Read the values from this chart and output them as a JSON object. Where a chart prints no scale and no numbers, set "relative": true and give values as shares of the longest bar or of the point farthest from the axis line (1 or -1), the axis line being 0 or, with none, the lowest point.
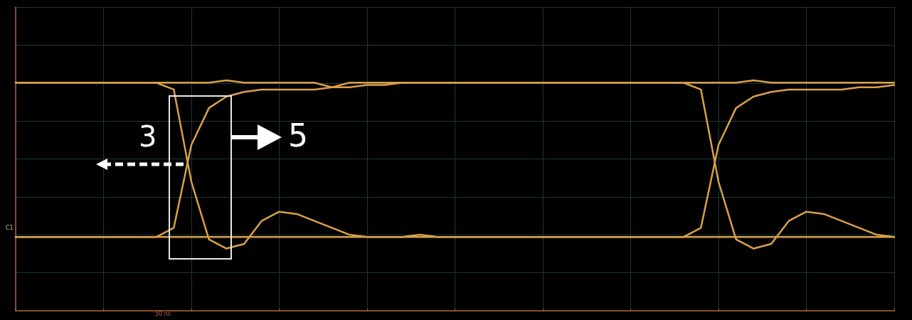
{
  "chart_data": {
    "type": "line",
    "relative": true,
    "marker": "none",
    "line_style": "solid",
    "grid": true,
    "categories": [
      null,
      null,
      null,
      null,
      null,
      null,
      null,
      null,
      null,
      null,
      null,
      null,
      null,
      null,
      null,
      null,
      null,
      null,
      null,
      null,
      null,
      null,
      null,
      null,
      null,
      null,
      null,
      null,
      null,
      null,
      null,
      null,
      null,
      null,
      null,
      null,
      null,
      null,
      null,
      null,
      null,
      null,
      null,
      null,
      null,
      null,
      null,
      null,
      null,
      null,
      null
    ],
    "annotations": [
      "3",
      "5",
      "C1",
      "50 ns"
    ],
    "series": [
      {
        "color": "#d9a04a",
        "values": [
          0.99,
          0.99,
          0.99,
          0.99,
          0.99,
          0.99,
          0.99,
          0.99,
          0.99,
          0.96,
          0.56,
          0.31,
          0.27,
          0.29,
          0.39,
          0.43,
          0.42,
          0.39,
          0.36,
          0.33,
          0.32,
          0.32,
          0.32,
          0.32,
          0.32,
          0.32,
          0.32,
          0.32,
          0.32,
          0.32,
          0.32,
          0.32,
          0.32,
          0.32,
          0.32,
          0.32,
          0.32,
          0.32,
          0.32,
          0.36,
          0.72,
          0.88,
          0.93,
          0.95,
          0.96,
          0.96,
          0.96,
          0.96,
          0.97,
          0.97,
          0.98
        ]
      },
      {
        "color": "#d9a04a",
        "values": [
          0.32,
          0.32,
          0.32,
          0.32,
          0.32,
          0.32,
          0.32,
          0.32,
          0.32,
          0.36,
          0.72,
          0.88,
          0.93,
          0.95,
          0.96,
          0.96,
          0.96,
          0.96,
          0.97,
          0.97,
          0.98,
          0.98,
          0.99,
          0.99,
          0.99,
          0.99,
          0.99,
          0.99,
          0.99,
          0.99,
          0.99,
          0.99,
          0.99,
          0.99,
          0.99,
          0.99,
          0.99,
          0.99,
          0.99,
          0.96,
          0.56,
          0.31,
          0.27,
          0.29,
          0.39,
          0.43,
          0.42,
          0.39,
          0.36,
          0.33,
          0.32
        ]
      },
      {
        "color": "#d9a04a",
        "values": [
          0.99,
          0.99,
          0.99,
          0.99,
          0.99,
          0.99,
          0.99,
          0.99,
          0.99,
          0.99,
          0.99,
          0.99,
          1.0,
          0.99,
          0.99,
          0.99,
          0.99,
          0.99,
          0.97,
          0.99,
          0.99,
          0.99,
          0.99,
          0.99,
          0.99,
          0.99,
          0.99,
          0.99,
          0.99,
          0.99,
          0.99,
          0.99,
          0.99,
          0.99,
          0.99,
          0.99,
          0.99,
          0.99,
          0.99,
          0.99,
          0.99,
          0.99,
          1.0,
          0.99,
          0.99,
          0.99,
          0.99,
          0.99,
          0.99,
          0.99,
          0.99
        ]
      },
      {
        "color": "#d9a04a",
        "values": [
          0.32,
          0.32,
          0.32,
          0.32,
          0.32,
          0.32,
          0.32,
          0.32,
          0.32,
          0.32,
          0.32,
          0.32,
          0.32,
          0.32,
          0.32,
          0.32,
          0.32,
          0.32,
          0.32,
          0.32,
          0.32,
          0.32,
          0.32,
          0.33,
          0.32,
          0.32,
          0.32,
          0.32,
          0.32,
          0.32,
          0.32,
          0.32,
          0.32,
          0.32,
          0.32,
          0.32,
          0.32,
          0.32,
          0.32,
          0.32,
          0.32,
          0.32,
          0.32,
          0.32,
          0.32,
          0.32,
          0.32,
          0.32,
          0.32,
          0.32,
          0.32
        ]
      }
    ]
  }
}
